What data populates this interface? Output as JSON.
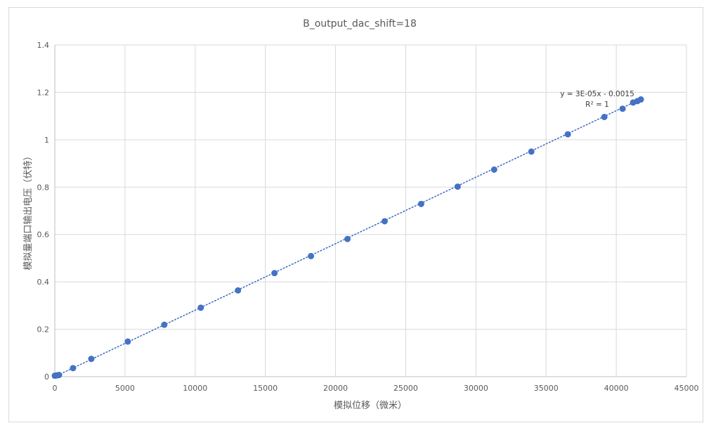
{
  "chart_data": {
    "type": "scatter",
    "title": "B_output_dac_shift=18",
    "xlabel": "模拟位移（微米）",
    "ylabel": "模拟量端口输出电压（伏特）",
    "xlim": [
      0,
      45000
    ],
    "ylim": [
      0,
      1.4
    ],
    "xticks": [
      0,
      5000,
      10000,
      15000,
      20000,
      25000,
      30000,
      35000,
      40000,
      45000
    ],
    "yticks": [
      0,
      0.2,
      0.4,
      0.6,
      0.8,
      1,
      1.2,
      1.4
    ],
    "grid": true,
    "legend": "none",
    "series": [
      {
        "color": "#4472c4",
        "points": [
          [
            0,
            0.004
          ],
          [
            100,
            0.005
          ],
          [
            200,
            0.006
          ],
          [
            300,
            0.007
          ],
          [
            1300,
            0.036
          ],
          [
            2600,
            0.075
          ],
          [
            5200,
            0.148
          ],
          [
            7800,
            0.219
          ],
          [
            10400,
            0.291
          ],
          [
            13050,
            0.364
          ],
          [
            15650,
            0.437
          ],
          [
            18250,
            0.509
          ],
          [
            20850,
            0.581
          ],
          [
            23500,
            0.656
          ],
          [
            26100,
            0.729
          ],
          [
            28700,
            0.802
          ],
          [
            31300,
            0.874
          ],
          [
            33950,
            0.95
          ],
          [
            36550,
            1.023
          ],
          [
            39150,
            1.096
          ],
          [
            40450,
            1.131
          ],
          [
            41200,
            1.157
          ],
          [
            41500,
            1.163
          ],
          [
            41750,
            1.17
          ]
        ]
      }
    ],
    "trendline": {
      "type": "linear",
      "x_range": [
        0,
        41750
      ],
      "slope": 2.81e-05,
      "intercept": -0.0015,
      "equation": "y = 3E-05x - 0.0015",
      "r_squared": "R² = 1"
    }
  }
}
